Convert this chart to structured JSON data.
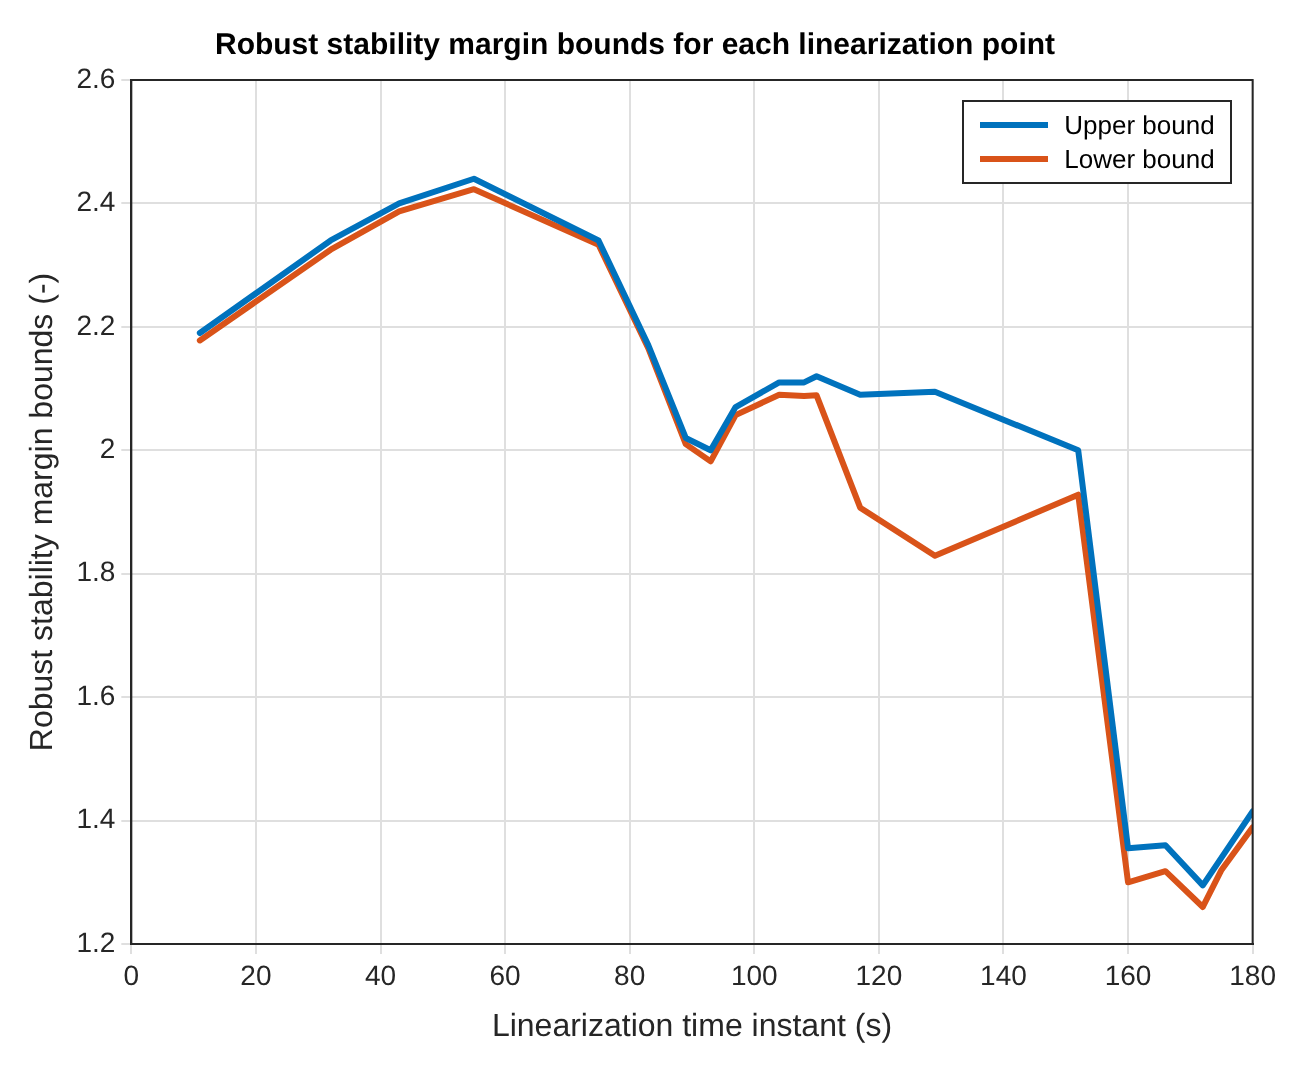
{
  "chart_data": {
    "type": "line",
    "title": "Robust stability margin bounds for each linearization point",
    "xlabel": "Linearization time instant (s)",
    "ylabel": "Robust stability margin bounds (-)",
    "xlim": [
      0,
      180
    ],
    "xticks": [
      0,
      20,
      40,
      60,
      80,
      100,
      120,
      140,
      160,
      180
    ],
    "ylim": [
      1.2,
      2.6
    ],
    "yticks": [
      1.2,
      1.4,
      1.6,
      1.8,
      2,
      2.2,
      2.4,
      2.6
    ],
    "grid": true,
    "legend": "top right",
    "marker": "none",
    "line_style": "solid",
    "series": [
      {
        "name": "Upper bound",
        "color": "#0072bd",
        "x": [
          11,
          32,
          43,
          55,
          75,
          83,
          89,
          93,
          97,
          104,
          108,
          110,
          117,
          129,
          152,
          160,
          166,
          172,
          175,
          180
        ],
        "values": [
          2.19,
          2.34,
          2.4,
          2.44,
          2.34,
          2.17,
          2.02,
          2.0,
          2.07,
          2.11,
          2.11,
          2.12,
          2.09,
          2.095,
          2.0,
          1.355,
          1.36,
          1.295,
          1.34,
          1.415
        ]
      },
      {
        "name": "Lower bound",
        "color": "#d95319",
        "x": [
          11,
          32,
          43,
          55,
          75,
          83,
          89,
          93,
          97,
          104,
          108,
          110,
          117,
          129,
          152,
          160,
          166,
          172,
          175,
          180
        ],
        "values": [
          2.178,
          2.325,
          2.387,
          2.423,
          2.333,
          2.165,
          2.01,
          1.982,
          2.057,
          2.09,
          2.088,
          2.089,
          1.907,
          1.829,
          1.928,
          1.3,
          1.318,
          1.26,
          1.32,
          1.389
        ]
      }
    ]
  }
}
